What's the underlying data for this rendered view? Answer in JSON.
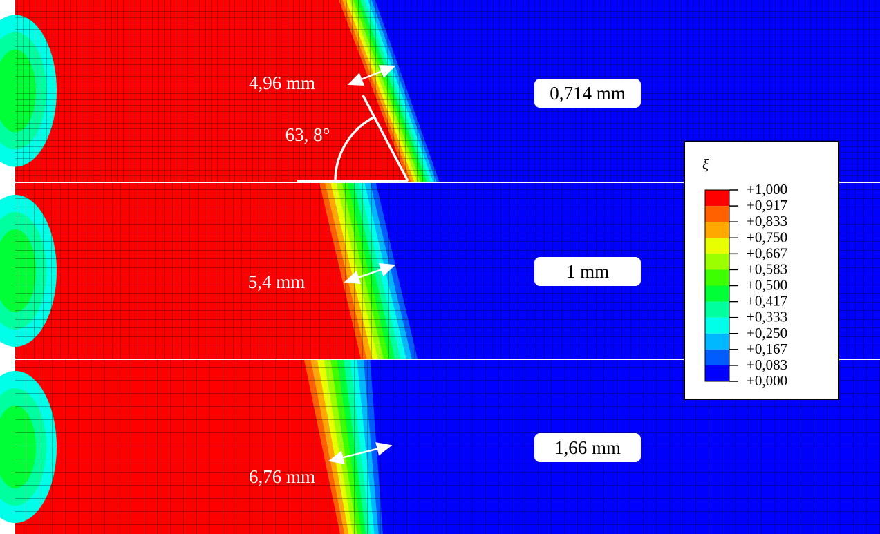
{
  "panels": [
    {
      "mesh_size": "0,714 mm",
      "width": "4,96 mm",
      "angle": "63, 8°"
    },
    {
      "mesh_size": "1 mm",
      "width": "5,4 mm"
    },
    {
      "mesh_size": "1,66 mm",
      "width": "6,76 mm"
    }
  ],
  "legend": {
    "symbol": "ξ",
    "labels": [
      "+1,000",
      "+0,917",
      "+0,833",
      "+0,750",
      "+0,667",
      "+0,583",
      "+0,500",
      "+0,417",
      "+0,333",
      "+0,250",
      "+0,167",
      "+0,083",
      "+0,000"
    ],
    "colors": [
      "#ff0000",
      "#ff6000",
      "#ffa800",
      "#e8ff00",
      "#9cff00",
      "#3dff00",
      "#00ff36",
      "#00ff9e",
      "#00ffe8",
      "#00b8ff",
      "#005cff",
      "#0000ff"
    ]
  }
}
